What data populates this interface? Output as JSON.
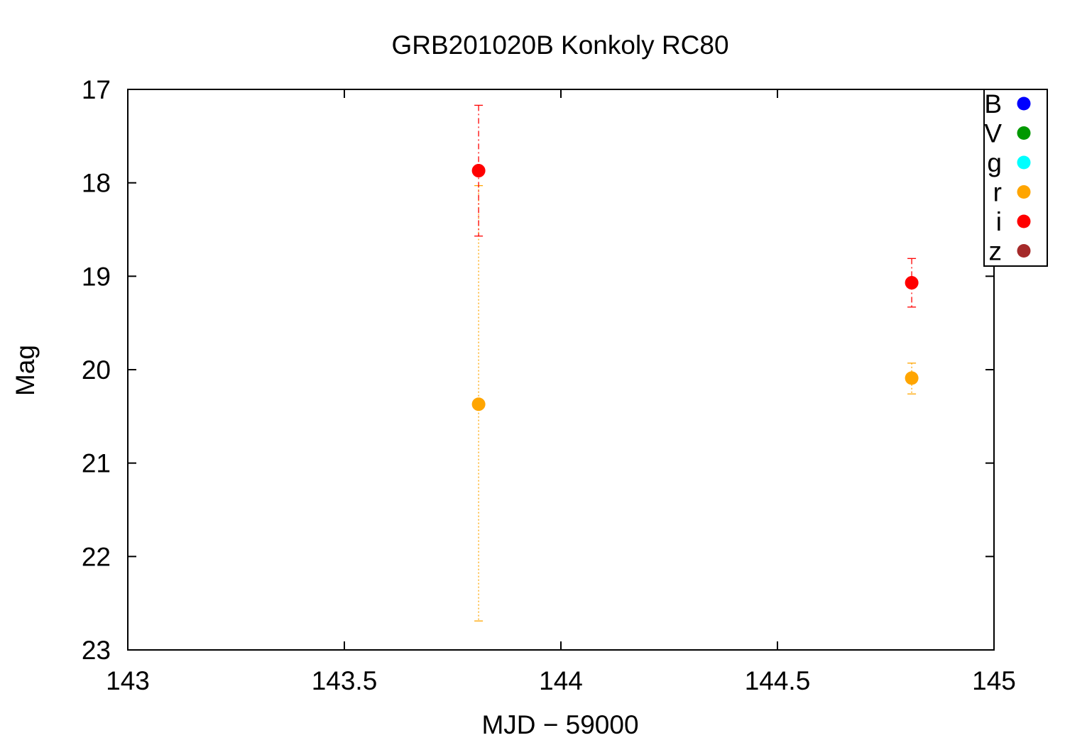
{
  "chart_data": {
    "type": "scatter",
    "title": "GRB201020B Konkoly RC80",
    "xlabel": "MJD − 59000",
    "ylabel": "Mag",
    "xlim": [
      143,
      145
    ],
    "ylim": [
      17,
      23
    ],
    "y_inverted": true,
    "x_ticks": [
      143,
      143.5,
      144,
      144.5,
      145
    ],
    "x_tick_labels": [
      "143",
      "143.5",
      "144",
      "144.5",
      "145"
    ],
    "y_ticks": [
      17,
      18,
      19,
      20,
      21,
      22,
      23
    ],
    "y_tick_labels": [
      "17",
      "18",
      "19",
      "20",
      "21",
      "22",
      "23"
    ],
    "grid": false,
    "legend_position": "top-right",
    "series": [
      {
        "name": "B",
        "color": "#0000ff",
        "points": []
      },
      {
        "name": "V",
        "color": "#009900",
        "points": []
      },
      {
        "name": "g",
        "color": "#00ffff",
        "points": []
      },
      {
        "name": "r",
        "color": "#ffa500",
        "errorbar_style": "dotted",
        "points": [
          {
            "x": 143.81,
            "y": 20.37,
            "ylow": 18.03,
            "yhigh": 22.69
          },
          {
            "x": 144.81,
            "y": 20.09,
            "ylow": 19.93,
            "yhigh": 20.26
          }
        ]
      },
      {
        "name": "i",
        "color": "#ff0000",
        "errorbar_style": "dashdot",
        "points": [
          {
            "x": 143.81,
            "y": 17.87,
            "ylow": 17.17,
            "yhigh": 18.57
          },
          {
            "x": 144.81,
            "y": 19.07,
            "ylow": 18.81,
            "yhigh": 19.33
          }
        ]
      },
      {
        "name": "z",
        "color": "#a52a2a",
        "points": []
      }
    ]
  }
}
